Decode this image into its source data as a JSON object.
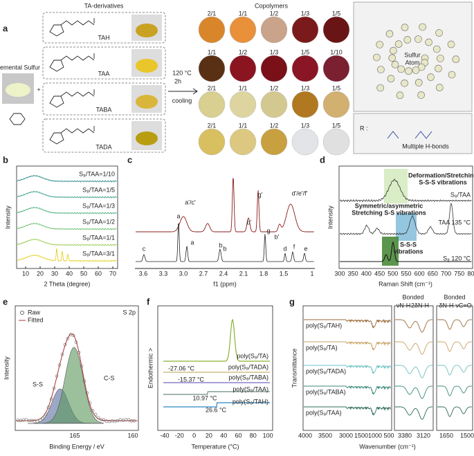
{
  "panels": {
    "a": {
      "label": "a",
      "reactants_title": "TA-derivatives",
      "sulfur": "Elemental Sulfur",
      "derivatives": [
        "TAH",
        "TAA",
        "TABA",
        "TADA"
      ],
      "plus": "+",
      "conditions": [
        "120 °C",
        "2h",
        "cooling"
      ],
      "copolymers_title": "Copolymers",
      "ratios": [
        [
          "2/1",
          "1/1",
          "1/2",
          "1/3",
          "1/5"
        ],
        [
          "1/1",
          "1/2",
          "1/3",
          "1/5",
          "1/10"
        ],
        [
          "2/1",
          "1/1",
          "1/2",
          "1/3",
          "1/5"
        ],
        [
          "2/1",
          "1/1",
          "1/2",
          "1/3",
          "1/5"
        ]
      ],
      "sulfur_atom": [
        "Sulfur",
        "Atom"
      ],
      "r_label": "R :",
      "hbonds": "Multiple H-bonds"
    },
    "b": {
      "label": "b",
      "traces": [
        "S₈/TAA=1/10",
        "S₈/TAA=1/5",
        "S₈/TAA=1/3",
        "S₈/TAA=1/2",
        "S₈/TAA=1/1",
        "S₈/TAA=3/1"
      ],
      "ylabel": "Intensity",
      "xlabel": "2 Theta (degree)",
      "xticks": [
        "10",
        "20",
        "30",
        "40",
        "50",
        "60",
        "70"
      ]
    },
    "c": {
      "label": "c",
      "upper_peaks": [
        "a'/c'",
        "g'",
        "b'",
        "b'",
        "d'/e'/f'"
      ],
      "lower_peaks": [
        "c",
        "a",
        "a",
        "b",
        "g",
        "b",
        "d",
        "f",
        "e"
      ],
      "xlabel": "f1 (ppm)",
      "xticks": [
        "3.6",
        "3.3",
        "3.0",
        "2.7",
        "2.4",
        "2.1",
        "1.8",
        "1.5",
        "1"
      ]
    },
    "d": {
      "label": "d",
      "annotations": [
        "Deformation/Stretching",
        "S-S-S vibrations",
        "Symmetric/asymmetric",
        "Stretching S-S vibrations",
        "S-S-S",
        "vibrations"
      ],
      "traces": [
        "S₈/TAA",
        "TAA 135 °C",
        "S₈ 120 °C"
      ],
      "ylabel": "Intensity",
      "xlabel": "Raman Shift (cm⁻¹)",
      "xticks": [
        "300",
        "350",
        "400",
        "450",
        "500",
        "550",
        "600",
        "650",
        "700",
        "750",
        "800"
      ]
    },
    "e": {
      "label": "e",
      "legend": [
        "Raw",
        "Fitted"
      ],
      "title": "S 2p",
      "components": [
        "S-S",
        "C-S"
      ],
      "ylabel": "Intensity",
      "xlabel": "Binding Energy / eV",
      "xticks": [
        "165",
        "160"
      ]
    },
    "f": {
      "label": "f",
      "ylabel": "Endothermic >",
      "xlabel": "Temperature (°C)",
      "xticks": [
        "-40",
        "-20",
        "0",
        "20",
        "40",
        "60",
        "80",
        "100"
      ],
      "traces": [
        "poly(S₈/TA)",
        "poly(S₈/TADA)",
        "poly(S₈/TABA)",
        "poly(S₈/TAA)",
        "poly(S₈/TAH)"
      ],
      "transitions": [
        "-27.06 °C",
        "-15.37 °C",
        "10.97 °C",
        "26.6 °C"
      ]
    },
    "g": {
      "label": "g",
      "traces": [
        "poly(S₈/TAH)",
        "poly(S₈/TA)",
        "poly(S₈/TADA)",
        "poly(S₈/TABA)",
        "poly(S₈/TAA)"
      ],
      "headers": [
        "Bonded",
        "νN-H",
        "2δN-H",
        "Bonded",
        "δN-H",
        "νC=O"
      ],
      "xticks": [
        "4000",
        "3500",
        "3000",
        "1500",
        "1000",
        "500",
        "3380",
        "3120",
        "1650",
        "1500"
      ],
      "ylabel": "Transmittance",
      "xlabel": "Wavenumber (cm⁻¹)"
    }
  }
}
